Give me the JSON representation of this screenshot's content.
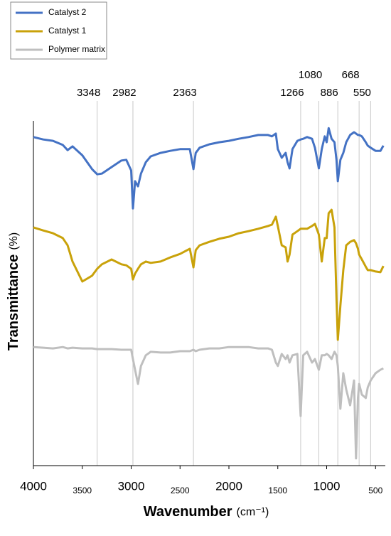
{
  "chart_data": {
    "type": "line",
    "xlabel": "Wavenumber",
    "xlabel_unit": "(cm⁻¹)",
    "ylabel": "Transmittance",
    "ylabel_unit": "(%)",
    "xlim": [
      4000,
      400
    ],
    "ylim": [
      0,
      100
    ],
    "xticks": [
      4000,
      3500,
      3000,
      2500,
      2000,
      1500,
      1000,
      500
    ],
    "peak_lines": [
      3348,
      2982,
      2363,
      1266,
      1080,
      886,
      668,
      550
    ],
    "legend": "top-left",
    "x": [
      4000,
      3900,
      3800,
      3700,
      3650,
      3600,
      3500,
      3400,
      3348,
      3300,
      3200,
      3100,
      3050,
      3000,
      2982,
      2960,
      2930,
      2900,
      2850,
      2800,
      2700,
      2600,
      2500,
      2400,
      2363,
      2340,
      2300,
      2200,
      2100,
      2000,
      1900,
      1800,
      1700,
      1600,
      1560,
      1520,
      1500,
      1460,
      1420,
      1400,
      1380,
      1350,
      1300,
      1266,
      1240,
      1200,
      1150,
      1120,
      1080,
      1050,
      1020,
      1000,
      980,
      950,
      920,
      900,
      886,
      860,
      830,
      800,
      760,
      720,
      700,
      680,
      668,
      640,
      600,
      580,
      550,
      500,
      450,
      420
    ],
    "series": [
      {
        "name": "Catalyst 2",
        "color": "#4472c4",
        "values": [
          95.3,
          94.6,
          94.2,
          93.0,
          91.5,
          92.6,
          90.0,
          86.0,
          84.5,
          84.7,
          86.6,
          88.5,
          88.7,
          85.6,
          74.6,
          82.5,
          81.0,
          84.7,
          88.0,
          89.7,
          90.7,
          91.3,
          91.8,
          91.8,
          86.0,
          90.7,
          92.2,
          93.2,
          93.8,
          94.2,
          94.8,
          95.3,
          95.9,
          95.9,
          95.5,
          96.3,
          91.8,
          89.3,
          90.7,
          88.0,
          86.2,
          91.8,
          94.2,
          94.6,
          94.8,
          95.3,
          94.8,
          92.2,
          86.2,
          91.8,
          95.5,
          93.8,
          97.9,
          94.8,
          93.8,
          88.7,
          82.5,
          88.7,
          90.7,
          93.8,
          95.9,
          96.7,
          96.3,
          95.9,
          95.9,
          95.5,
          93.8,
          92.8,
          92.2,
          91.3,
          91.3,
          92.8
        ]
      },
      {
        "name": "Catalyst 1",
        "color": "#c9a20a",
        "values": [
          69.1,
          68.2,
          67.4,
          66.0,
          63.9,
          59.2,
          53.4,
          55.1,
          57.1,
          58.4,
          59.8,
          58.4,
          58.1,
          57.1,
          54.0,
          55.7,
          57.1,
          58.4,
          59.2,
          58.8,
          59.2,
          60.4,
          61.4,
          62.9,
          57.5,
          62.5,
          63.9,
          64.9,
          65.8,
          66.4,
          67.4,
          68.0,
          68.7,
          69.5,
          69.9,
          72.2,
          69.5,
          63.9,
          63.3,
          59.2,
          61.2,
          67.0,
          68.0,
          68.7,
          68.7,
          68.7,
          69.5,
          70.1,
          67.0,
          59.2,
          66.0,
          66.0,
          73.2,
          74.2,
          69.1,
          48.5,
          36.5,
          46.4,
          56.7,
          63.9,
          64.9,
          65.4,
          64.5,
          62.9,
          61.2,
          59.8,
          57.7,
          56.7,
          56.7,
          56.3,
          56.1,
          57.9
        ]
      },
      {
        "name": "Polymer matrix",
        "color": "#bfbfbf",
        "values": [
          34.4,
          34.2,
          34.0,
          34.4,
          34.0,
          34.2,
          34.0,
          34.0,
          33.8,
          33.8,
          33.8,
          33.6,
          33.6,
          33.6,
          30.9,
          27.8,
          23.7,
          28.9,
          32.0,
          33.0,
          32.8,
          32.8,
          33.2,
          33.2,
          33.6,
          33.2,
          33.6,
          34.0,
          34.0,
          34.4,
          34.4,
          34.4,
          34.0,
          34.0,
          33.6,
          29.9,
          28.9,
          32.4,
          30.9,
          32.0,
          29.9,
          32.0,
          32.4,
          14.4,
          32.0,
          33.0,
          29.9,
          30.9,
          27.8,
          32.0,
          32.0,
          32.4,
          32.0,
          30.9,
          33.0,
          32.0,
          28.9,
          16.5,
          26.8,
          22.1,
          17.5,
          24.7,
          2.1,
          19.6,
          23.7,
          20.6,
          19.6,
          22.7,
          24.7,
          26.8,
          27.8,
          28.2
        ]
      }
    ]
  }
}
